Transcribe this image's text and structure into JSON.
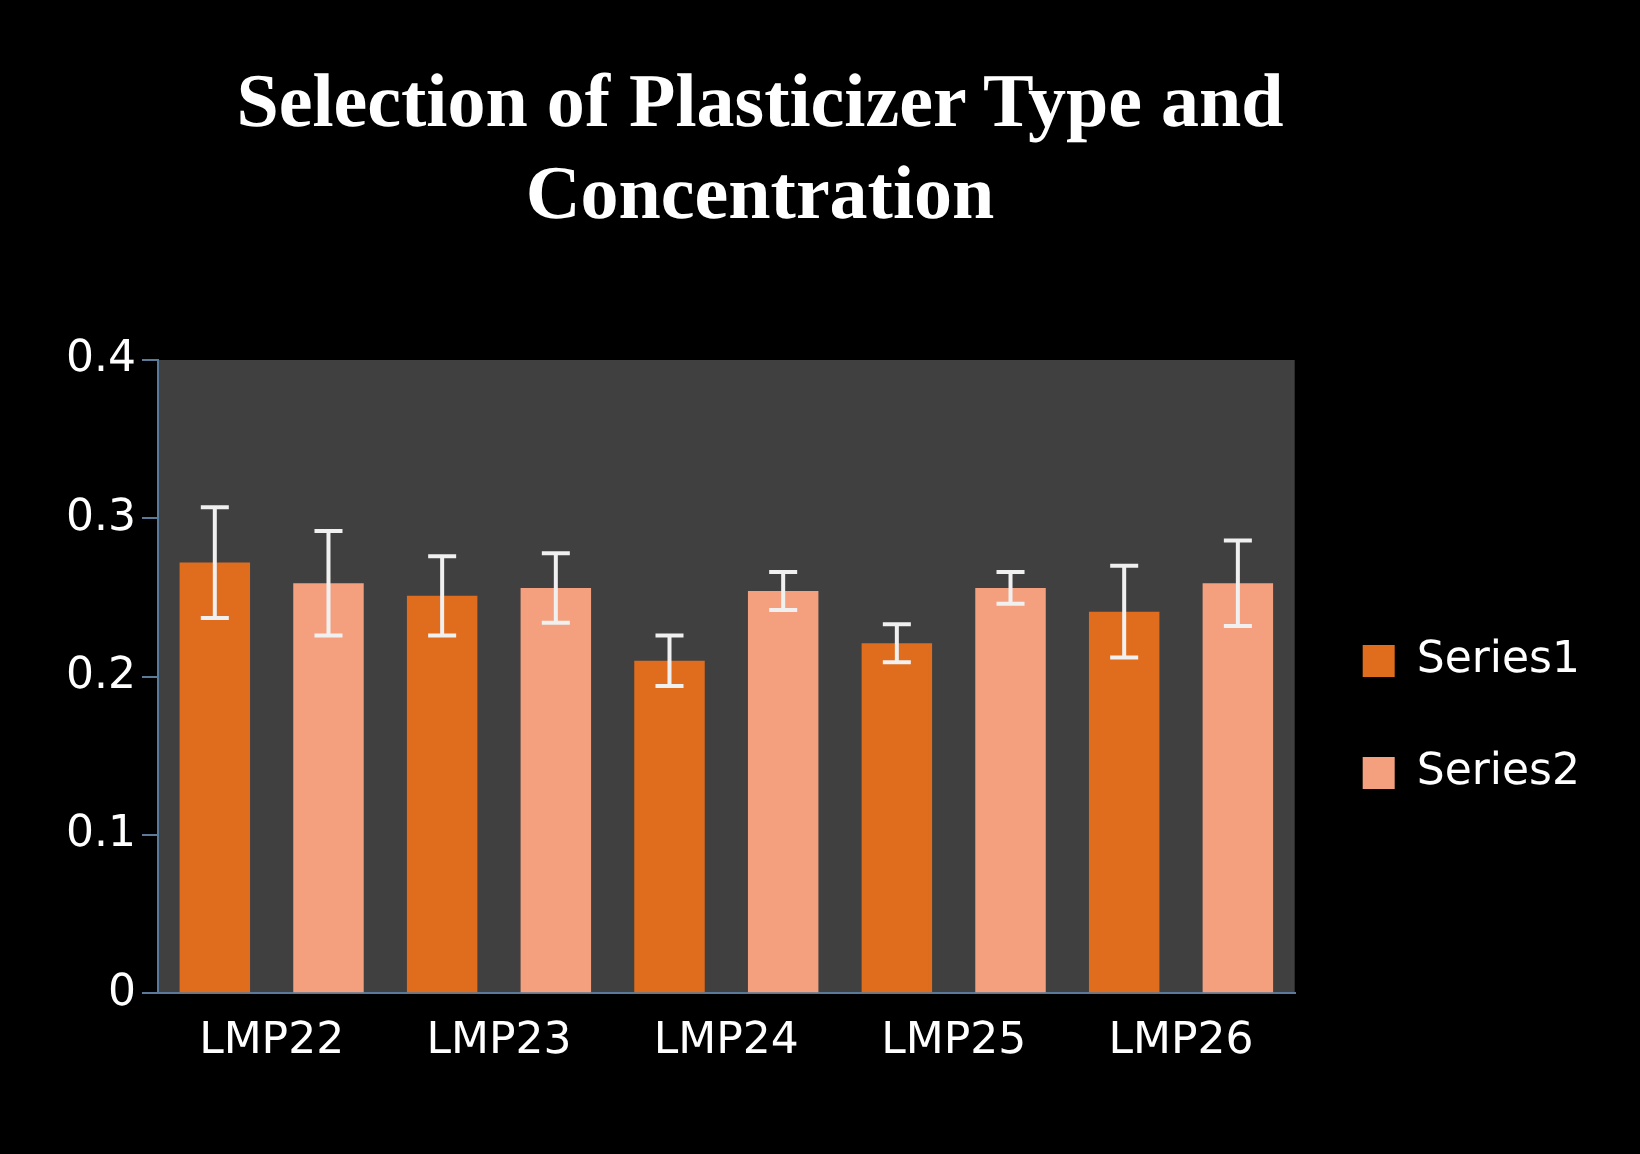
{
  "chart_data": {
    "type": "bar",
    "title": "Selection of  Plasticizer Type and Concentration",
    "categories": [
      "LMP22",
      "LMP23",
      "LMP24",
      "LMP25",
      "LMP26"
    ],
    "series": [
      {
        "name": "Series1",
        "color": "#e06c1e",
        "values": [
          0.272,
          0.251,
          0.21,
          0.221,
          0.241
        ],
        "errors": [
          0.035,
          0.025,
          0.016,
          0.012,
          0.029
        ]
      },
      {
        "name": "Series2",
        "color": "#f4a07e",
        "values": [
          0.259,
          0.256,
          0.254,
          0.256,
          0.259
        ],
        "errors": [
          0.033,
          0.022,
          0.012,
          0.01,
          0.027
        ]
      }
    ],
    "ylim": [
      0,
      0.4
    ],
    "yticks": [
      0,
      0.1,
      0.2,
      0.3,
      0.4
    ],
    "grid": false,
    "legend": "right"
  }
}
